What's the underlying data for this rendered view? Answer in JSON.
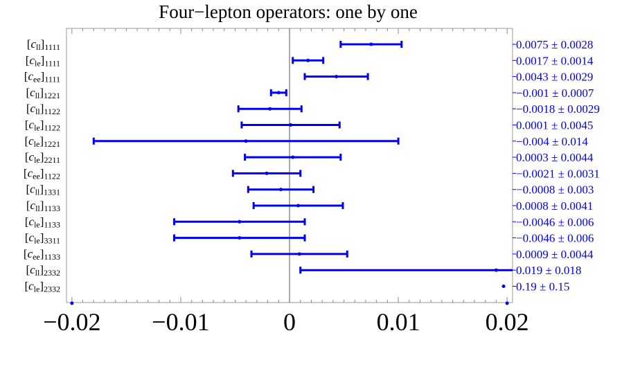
{
  "chart_data": {
    "type": "errorbar",
    "title": "Four−lepton operators: one by one",
    "xlabel": "",
    "ylabel": "",
    "xlim": [
      -0.0205,
      0.0205
    ],
    "x_ticks": [
      {
        "value": -0.02,
        "label": "−0.02"
      },
      {
        "value": -0.01,
        "label": "−0.01"
      },
      {
        "value": 0,
        "label": "0"
      },
      {
        "value": 0.01,
        "label": "0.01"
      },
      {
        "value": 0.02,
        "label": "0.02"
      }
    ],
    "color": "#0000ee",
    "zero_line": true,
    "frame_right_axis_ticks": true,
    "rows": [
      {
        "coef": "c",
        "sub_in": "ll",
        "idx": "1111",
        "center": 0.0075,
        "err": 0.0028,
        "value_label": "0.0075 ± 0.0028"
      },
      {
        "coef": "c",
        "sub_in": "le",
        "idx": "1111",
        "center": 0.0017,
        "err": 0.0014,
        "value_label": "0.0017 ± 0.0014"
      },
      {
        "coef": "c",
        "sub_in": "ee",
        "idx": "1111",
        "center": 0.0043,
        "err": 0.0029,
        "value_label": "0.0043 ± 0.0029"
      },
      {
        "coef": "c",
        "sub_in": "ll",
        "idx": "1221",
        "center": -0.001,
        "err": 0.0007,
        "value_label": "−0.001 ± 0.0007"
      },
      {
        "coef": "c",
        "sub_in": "ll",
        "idx": "1122",
        "center": -0.0018,
        "err": 0.0029,
        "value_label": "−0.0018 ± 0.0029"
      },
      {
        "coef": "c",
        "sub_in": "le",
        "idx": "1122",
        "center": 0.0001,
        "err": 0.0045,
        "value_label": "0.0001 ± 0.0045"
      },
      {
        "coef": "c",
        "sub_in": "le",
        "idx": "1221",
        "center": -0.004,
        "err": 0.014,
        "value_label": "−0.004 ± 0.014"
      },
      {
        "coef": "c",
        "sub_in": "le",
        "idx": "2211",
        "center": 0.0003,
        "err": 0.0044,
        "value_label": "0.0003 ± 0.0044"
      },
      {
        "coef": "c",
        "sub_in": "ee",
        "idx": "1122",
        "center": -0.0021,
        "err": 0.0031,
        "value_label": "−0.0021 ± 0.0031"
      },
      {
        "coef": "c",
        "sub_in": "ll",
        "idx": "1331",
        "center": -0.0008,
        "err": 0.003,
        "value_label": "−0.0008 ± 0.003"
      },
      {
        "coef": "c",
        "sub_in": "ll",
        "idx": "1133",
        "center": 0.0008,
        "err": 0.0041,
        "value_label": "0.0008 ± 0.0041"
      },
      {
        "coef": "c",
        "sub_in": "le",
        "idx": "1133",
        "center": -0.0046,
        "err": 0.006,
        "value_label": "−0.0046 ± 0.006"
      },
      {
        "coef": "c",
        "sub_in": "le",
        "idx": "3311",
        "center": -0.0046,
        "err": 0.006,
        "value_label": "−0.0046 ± 0.006"
      },
      {
        "coef": "c",
        "sub_in": "ee",
        "idx": "1133",
        "center": 0.0009,
        "err": 0.0044,
        "value_label": "0.0009 ± 0.0044"
      },
      {
        "coef": "c",
        "sub_in": "ll",
        "idx": "2332",
        "center": 0.019,
        "err": 0.018,
        "value_label": "0.019 ± 0.018"
      },
      {
        "coef": "c",
        "sub_in": "le",
        "idx": "2332",
        "center": 0.19,
        "err": 0.15,
        "value_label": "0.19 ± 0.15"
      }
    ],
    "extra_points": [
      {
        "x": -0.02
      },
      {
        "x": 0.02
      }
    ]
  }
}
